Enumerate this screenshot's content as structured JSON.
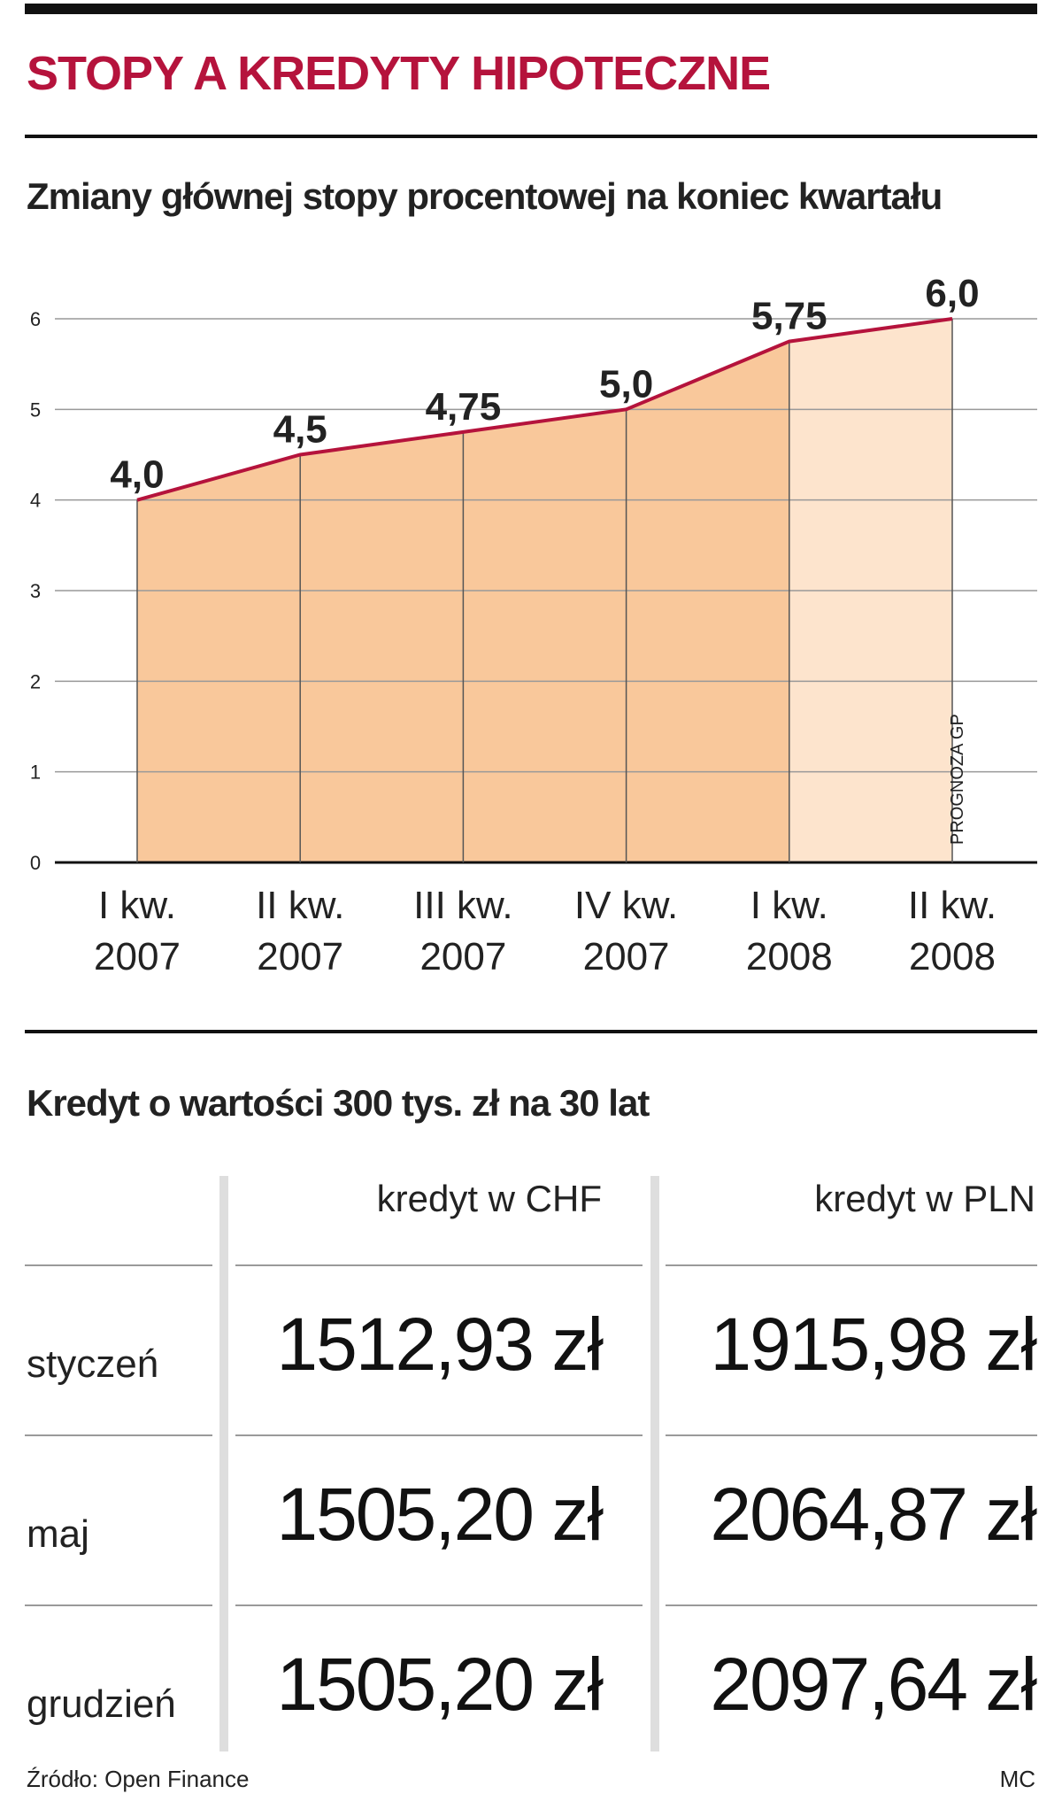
{
  "title": "STOPY A KREDYTY HIPOTECZNE",
  "chart_data": {
    "type": "area",
    "title": "Zmiany głównej stopy procentowej na koniec kwartału",
    "categories": [
      "I kw. 2007",
      "II kw. 2007",
      "III kw. 2007",
      "IV kw. 2007",
      "I kw. 2008",
      "II kw. 2008"
    ],
    "values": [
      4.0,
      4.5,
      4.75,
      5.0,
      5.75,
      6.0
    ],
    "value_labels": [
      "4,0",
      "4,5",
      "4,75",
      "5,0",
      "5,75",
      "6,0"
    ],
    "annotation": "PROGNOZA GP",
    "color": "#b5133c",
    "fill_color": "#f9c89b",
    "forecast_color": "#fde4cd",
    "ylim": [
      0,
      6
    ],
    "yticks": [
      0,
      1,
      2,
      3,
      4,
      5,
      6
    ],
    "grid": true
  },
  "table": {
    "title": "Kredyt o wartości 300 tys. zł na 30 lat",
    "columns": [
      "kredyt w CHF",
      "kredyt w PLN"
    ],
    "rows": [
      {
        "label": "styczeń",
        "values": [
          "1512,93 zł",
          "1915,98 zł"
        ]
      },
      {
        "label": "maj",
        "values": [
          "1505,20 zł",
          "2064,87 zł"
        ]
      },
      {
        "label": "grudzień",
        "values": [
          "1505,20 zł",
          "2097,64 zł"
        ]
      }
    ]
  },
  "source": "Źródło: Open Finance",
  "credit": "MC"
}
